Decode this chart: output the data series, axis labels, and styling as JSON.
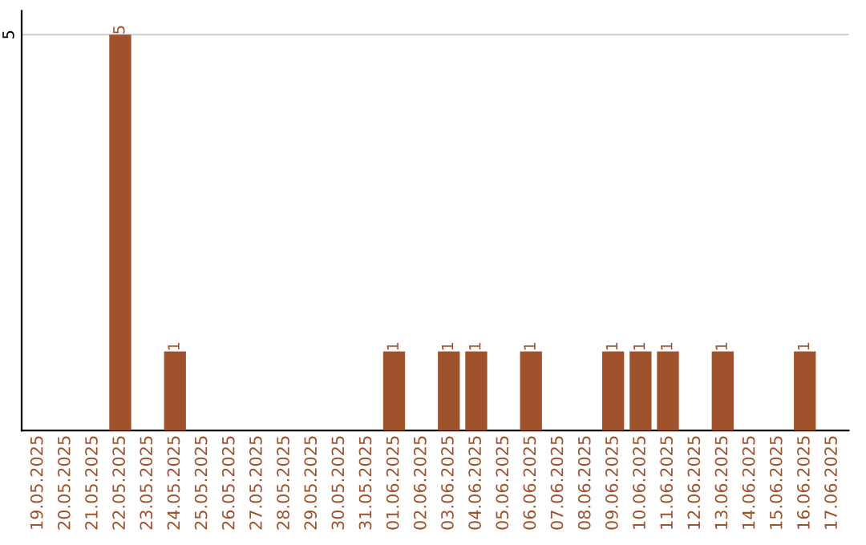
{
  "chart_data": {
    "type": "bar",
    "categories": [
      "19.05.2025",
      "20.05.2025",
      "21.05.2025",
      "22.05.2025",
      "23.05.2025",
      "24.05.2025",
      "25.05.2025",
      "26.05.2025",
      "27.05.2025",
      "28.05.2025",
      "29.05.2025",
      "30.05.2025",
      "31.05.2025",
      "01.06.2025",
      "02.06.2025",
      "03.06.2025",
      "04.06.2025",
      "05.06.2025",
      "06.06.2025",
      "07.06.2025",
      "08.06.2025",
      "09.06.2025",
      "10.06.2025",
      "11.06.2025",
      "12.06.2025",
      "13.06.2025",
      "14.06.2025",
      "15.06.2025",
      "16.06.2025",
      "17.06.2025"
    ],
    "values": [
      0,
      0,
      0,
      5,
      0,
      1,
      0,
      0,
      0,
      0,
      0,
      0,
      0,
      1,
      0,
      1,
      1,
      0,
      1,
      0,
      0,
      1,
      1,
      1,
      0,
      1,
      0,
      0,
      1,
      0
    ],
    "value_labels": [
      null,
      null,
      null,
      "5",
      null,
      "1",
      null,
      null,
      null,
      null,
      null,
      null,
      null,
      "1",
      null,
      "1",
      "1",
      null,
      "1",
      null,
      null,
      "1",
      "1",
      "1",
      null,
      "1",
      null,
      null,
      "1",
      null
    ],
    "color": "#a0522d",
    "ylim": [
      0,
      5.3
    ],
    "yticks": [
      5
    ],
    "grid": "y"
  }
}
